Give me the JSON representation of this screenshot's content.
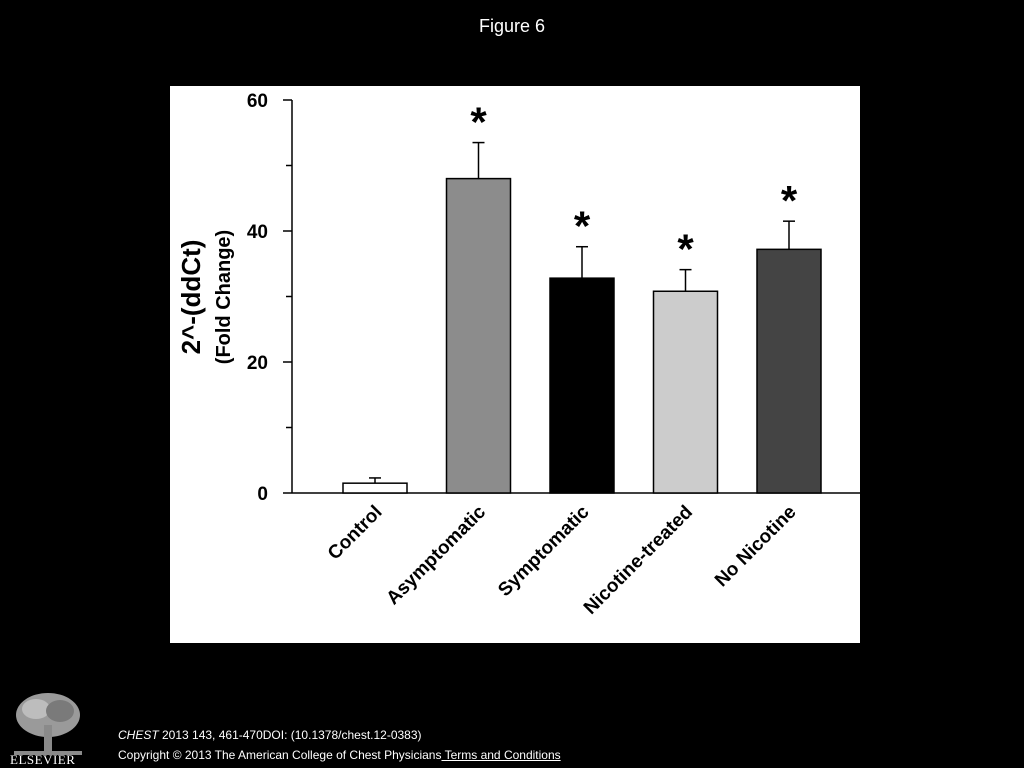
{
  "slide": {
    "title": "Figure 6",
    "citation_journal": "CHEST",
    "citation_rest": " 2013 143, 461-470DOI: (10.1378/chest.12-0383)",
    "copyright": "Copyright © 2013 The American College of Chest Physicians",
    "terms_link": " Terms and Conditions",
    "logo_text": "ELSEVIER"
  },
  "chart_data": {
    "type": "bar",
    "categories": [
      "Control",
      "Asymptomatic",
      "Symptomatic",
      "Nicotine-treated",
      "No Nicotine"
    ],
    "values": [
      1.5,
      48,
      32.8,
      30.8,
      37.2
    ],
    "errors": [
      0.8,
      5.5,
      4.8,
      3.3,
      4.3
    ],
    "significance": [
      "",
      "*",
      "*",
      "*",
      "*"
    ],
    "colors": [
      "#ffffff",
      "#8c8c8c",
      "#000000",
      "#cccccc",
      "#444444"
    ],
    "ylabel_line1": "2^-(ddCt)",
    "ylabel_line2": "(Fold Change)",
    "ylim": [
      0,
      60
    ],
    "yticks": [
      0,
      20,
      40,
      60
    ],
    "grid": false
  }
}
